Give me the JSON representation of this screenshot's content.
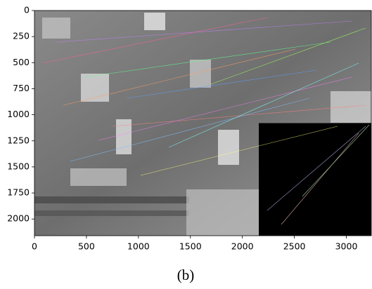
{
  "chart_data": {
    "type": "image",
    "xlim": [
      0,
      3240
    ],
    "ylim": [
      2160,
      0
    ],
    "xticks": [
      0,
      500,
      1000,
      1500,
      2000,
      2500,
      3000
    ],
    "yticks": [
      0,
      250,
      500,
      750,
      1000,
      1250,
      1500,
      1750,
      2000
    ],
    "caption": "(b)"
  }
}
